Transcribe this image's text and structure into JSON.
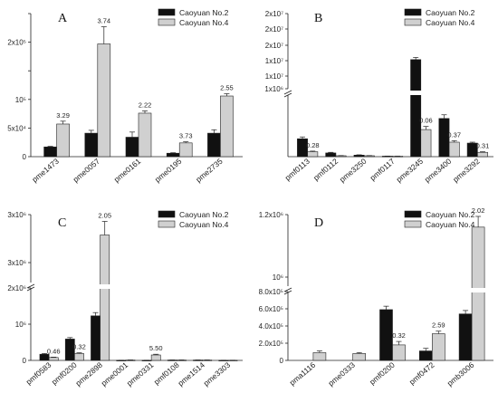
{
  "chart_data": [
    {
      "type": "bar",
      "panel": "A",
      "legend": [
        "Caoyuan No.2",
        "Caoyuan No.4"
      ],
      "legend_position": "top-right",
      "colors": {
        "caoyuan_no2": "#111111",
        "caoyuan_no4": "#d0d0d0"
      },
      "categories": [
        "pme1473",
        "pme0057",
        "pme0161",
        "pme0195",
        "pme2735"
      ],
      "series": [
        {
          "name": "Caoyuan No.2",
          "values": [
            17000,
            41000,
            34000,
            6000,
            41000
          ],
          "errors": [
            1000,
            5000,
            9000,
            800,
            6000
          ]
        },
        {
          "name": "Caoyuan No.4",
          "values": [
            57000,
            197000,
            76000,
            24000,
            106000
          ],
          "errors": [
            5000,
            30000,
            4000,
            2000,
            4000
          ]
        }
      ],
      "data_labels": [
        "3.29",
        "3.74",
        "2.22",
        "3.73",
        "2.55"
      ],
      "ylim": [
        0,
        250000
      ],
      "yticks": [
        0,
        50000,
        100000,
        150000,
        200000,
        250000
      ],
      "ytick_labels": [
        "0",
        "5x10⁴",
        "10⁵",
        "",
        "2x10⁵",
        ""
      ],
      "xlabel": "",
      "ylabel": "",
      "title": ""
    },
    {
      "type": "bar",
      "panel": "B",
      "legend": [
        "Caoyuan No.2",
        "Caoyuan No.4"
      ],
      "legend_position": "top-right",
      "broken_axis": true,
      "categories": [
        "pmf0113",
        "pmf0112",
        "pme3250",
        "pmf0117",
        "pme3245",
        "pme3400",
        "pme3292"
      ],
      "series": [
        {
          "name": "Caoyuan No.2",
          "values": [
            290000,
            60000,
            25000,
            8000,
            10300000,
            620000,
            220000
          ],
          "errors": [
            30000,
            10000,
            5000,
            2000,
            700000,
            60000,
            15000
          ]
        },
        {
          "name": "Caoyuan No.4",
          "values": [
            80000,
            15000,
            15000,
            8000,
            440000,
            235000,
            70000
          ],
          "errors": [
            10000,
            3000,
            3000,
            2000,
            50000,
            25000,
            10000
          ]
        }
      ],
      "data_labels": [
        "0.28",
        "",
        "",
        "",
        "0.06",
        "0.37",
        "0.31"
      ],
      "ylim": [
        0,
        25000000
      ],
      "ytick_labels": [
        "1x10⁶",
        "1x10⁷",
        "1x10⁷",
        "2x10⁷",
        "2x10⁷",
        "2x10⁷"
      ],
      "xlabel": "",
      "ylabel": "",
      "title": ""
    },
    {
      "type": "bar",
      "panel": "C",
      "legend": [
        "Caoyuan No.2",
        "Caoyuan No.4"
      ],
      "legend_position": "top-right",
      "broken_axis": true,
      "categories": [
        "pmf0583",
        "pmf0200",
        "pme2898",
        "pme0001",
        "pme0331",
        "pmf0108",
        "pme1514",
        "pme3303"
      ],
      "series": [
        {
          "name": "Caoyuan No.2",
          "values": [
            170000,
            590000,
            1230000,
            5000,
            5000,
            10000,
            10000,
            5000
          ],
          "errors": [
            20000,
            40000,
            90000,
            1000,
            1000,
            2000,
            2000,
            1000
          ]
        },
        {
          "name": "Caoyuan No.4",
          "values": [
            80000,
            190000,
            2700000,
            10000,
            150000,
            10000,
            10000,
            5000
          ],
          "errors": [
            10000,
            20000,
            200000,
            2000,
            20000,
            2000,
            2000,
            1000
          ]
        }
      ],
      "data_labels": [
        "0.46",
        "0.32",
        "2.05",
        "",
        "5.50",
        "",
        "",
        ""
      ],
      "ytick_labels": [
        "0",
        "10⁶",
        "2x10⁶",
        "3x10⁶",
        "3x10⁶"
      ],
      "xlabel": "",
      "ylabel": "",
      "title": ""
    },
    {
      "type": "bar",
      "panel": "D",
      "legend": [
        "Caoyuan No.2",
        "Caoyuan No.4"
      ],
      "legend_position": "top-right",
      "broken_axis": true,
      "categories": [
        "pma1116",
        "pme0333",
        "pmf0200",
        "pmf0472",
        "pmb3006"
      ],
      "series": [
        {
          "name": "Caoyuan No.2",
          "values": [
            0,
            0,
            590000,
            110000,
            540000
          ],
          "errors": [
            0,
            0,
            40000,
            30000,
            40000
          ]
        },
        {
          "name": "Caoyuan No.4",
          "values": [
            90000,
            80000,
            180000,
            310000,
            1130000
          ],
          "errors": [
            20000,
            10000,
            40000,
            30000,
            60000
          ]
        }
      ],
      "data_labels": [
        "",
        "",
        "0.32",
        "2.59",
        "2.02"
      ],
      "ytick_labels": [
        "0",
        "2.0x10⁵",
        "4.0x10⁵",
        "6.0x10⁵",
        "8.0x10⁵",
        "10⁶",
        "1.2x10⁶"
      ],
      "xlabel": "",
      "ylabel": "",
      "title": ""
    }
  ]
}
